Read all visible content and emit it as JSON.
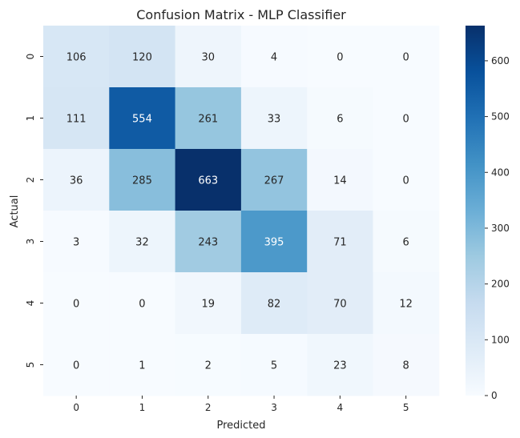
{
  "chart_data": {
    "type": "heatmap",
    "title": "Confusion Matrix - MLP Classifier",
    "xlabel": "Predicted",
    "ylabel": "Actual",
    "x_categories": [
      "0",
      "1",
      "2",
      "3",
      "4",
      "5"
    ],
    "y_categories": [
      "0",
      "1",
      "2",
      "3",
      "4",
      "5"
    ],
    "values": [
      [
        106,
        120,
        30,
        4,
        0,
        0
      ],
      [
        111,
        554,
        261,
        33,
        6,
        0
      ],
      [
        36,
        285,
        663,
        267,
        14,
        0
      ],
      [
        3,
        32,
        243,
        395,
        71,
        6
      ],
      [
        0,
        0,
        19,
        82,
        70,
        12
      ],
      [
        0,
        1,
        2,
        5,
        23,
        8
      ]
    ],
    "colormap": "Blues",
    "vmin": 0,
    "vmax": 663,
    "colorbar_ticks": [
      0,
      100,
      200,
      300,
      400,
      500,
      600
    ],
    "annotations": true
  }
}
